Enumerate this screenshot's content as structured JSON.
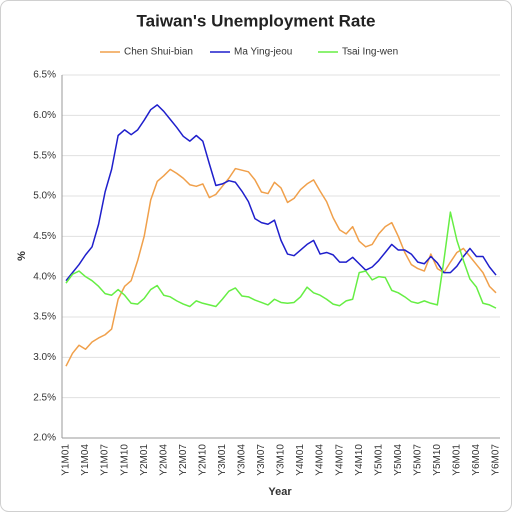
{
  "chart_data": {
    "type": "line",
    "title": "Taiwan's Unemployment Rate",
    "x_label": "Year",
    "y_label": "%",
    "categories": [
      "Y1M01",
      null,
      null,
      "Y1M04",
      null,
      null,
      "Y1M07",
      null,
      null,
      "Y1M10",
      null,
      null,
      "Y2M01",
      null,
      null,
      "Y2M04",
      null,
      null,
      "Y2M07",
      null,
      null,
      "Y2M10",
      null,
      null,
      "Y3M01",
      null,
      null,
      "Y3M04",
      null,
      null,
      "Y3M07",
      null,
      null,
      "Y3M10",
      null,
      null,
      "Y4M01",
      null,
      null,
      "Y4M04",
      null,
      null,
      "Y4M07",
      null,
      null,
      "Y4M10",
      null,
      null,
      "Y5M01",
      null,
      null,
      "Y5M04",
      null,
      null,
      "Y5M07",
      null,
      null,
      "Y5M10",
      null,
      null,
      "Y6M01",
      null,
      null,
      "Y6M04",
      null,
      null,
      "Y6M07"
    ],
    "series": [
      {
        "name": "Chen Shui-bian",
        "color": "#f0a04b",
        "values": [
          2.89,
          3.05,
          3.15,
          3.1,
          3.19,
          3.24,
          3.28,
          3.35,
          3.72,
          3.88,
          3.95,
          4.2,
          4.5,
          4.95,
          5.18,
          5.25,
          5.33,
          5.28,
          5.22,
          5.14,
          5.12,
          5.15,
          4.98,
          5.02,
          5.12,
          5.22,
          5.34,
          5.32,
          5.3,
          5.2,
          5.05,
          5.03,
          5.17,
          5.1,
          4.92,
          4.97,
          5.08,
          5.15,
          5.2,
          5.06,
          4.93,
          4.73,
          4.58,
          4.53,
          4.62,
          4.44,
          4.37,
          4.4,
          4.53,
          4.62,
          4.67,
          4.5,
          4.3,
          4.15,
          4.1,
          4.07,
          4.28,
          4.1,
          4.05,
          4.18,
          4.3,
          4.35,
          4.25,
          4.15,
          4.05,
          3.88,
          3.8
        ]
      },
      {
        "name": "Ma Ying-jeou",
        "color": "#1f1fcc",
        "values": [
          3.95,
          4.05,
          4.15,
          4.27,
          4.37,
          4.65,
          5.05,
          5.33,
          5.75,
          5.82,
          5.76,
          5.82,
          5.94,
          6.07,
          6.13,
          6.05,
          5.95,
          5.85,
          5.74,
          5.68,
          5.75,
          5.68,
          5.4,
          5.13,
          5.15,
          5.19,
          5.17,
          5.06,
          4.93,
          4.72,
          4.67,
          4.65,
          4.7,
          4.45,
          4.28,
          4.26,
          4.33,
          4.4,
          4.45,
          4.28,
          4.3,
          4.27,
          4.18,
          4.18,
          4.24,
          4.16,
          4.08,
          4.12,
          4.2,
          4.3,
          4.4,
          4.33,
          4.33,
          4.28,
          4.18,
          4.16,
          4.25,
          4.17,
          4.05,
          4.05,
          4.13,
          4.25,
          4.35,
          4.25,
          4.25,
          4.12,
          4.02
        ]
      },
      {
        "name": "Tsai Ing-wen",
        "color": "#66ee44",
        "values": [
          3.92,
          4.03,
          4.07,
          4.0,
          3.95,
          3.88,
          3.79,
          3.77,
          3.84,
          3.77,
          3.67,
          3.66,
          3.73,
          3.84,
          3.89,
          3.77,
          3.75,
          3.7,
          3.66,
          3.63,
          3.7,
          3.67,
          3.65,
          3.63,
          3.72,
          3.82,
          3.86,
          3.76,
          3.75,
          3.71,
          3.68,
          3.65,
          3.72,
          3.68,
          3.67,
          3.68,
          3.75,
          3.87,
          3.8,
          3.77,
          3.72,
          3.66,
          3.64,
          3.7,
          3.72,
          4.05,
          4.07,
          3.96,
          4.0,
          3.99,
          3.83,
          3.8,
          3.75,
          3.69,
          3.67,
          3.7,
          3.67,
          3.65,
          4.2,
          4.8,
          4.45,
          4.2,
          3.97,
          3.87,
          3.67,
          3.65,
          3.61
        ]
      }
    ],
    "ylim": [
      2.0,
      6.5
    ],
    "yticks": [
      {
        "value": 2.0,
        "label": "2.0%"
      },
      {
        "value": 2.5,
        "label": "2.5%"
      },
      {
        "value": 3.0,
        "label": "3.0%"
      },
      {
        "value": 3.5,
        "label": "3.5%"
      },
      {
        "value": 4.0,
        "label": "4.0%"
      },
      {
        "value": 4.5,
        "label": "4.5%"
      },
      {
        "value": 5.0,
        "label": "5.0%"
      },
      {
        "value": 5.5,
        "label": "5.5%"
      },
      {
        "value": 6.0,
        "label": "6.0%"
      },
      {
        "value": 6.5,
        "label": "6.5%"
      }
    ],
    "grid": true,
    "legend": "top"
  }
}
